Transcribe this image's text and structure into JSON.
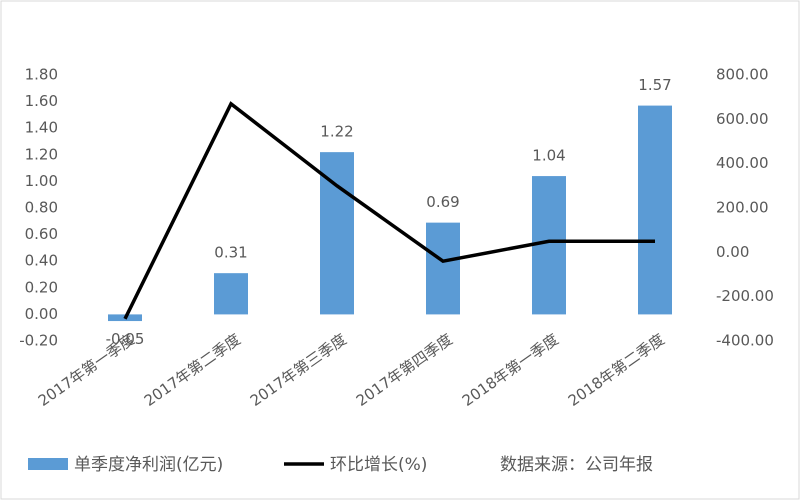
{
  "chart_data": {
    "type": "bar-line",
    "categories": [
      "2017年第一季度",
      "2017年第二季度",
      "2017年第三季度",
      "2017年第四季度",
      "2018年第一季度",
      "2018年第二季度"
    ],
    "series": [
      {
        "name": "单季度净利润(亿元)",
        "type": "bar",
        "color": "#5b9bd5",
        "values": [
          -0.05,
          0.31,
          1.22,
          0.69,
          1.04,
          1.57
        ]
      },
      {
        "name": "环比增长(%)",
        "type": "line",
        "axis": "y2",
        "color": "#000000",
        "values": [
          -300,
          670,
          300,
          -40,
          50,
          50
        ]
      }
    ],
    "ylim": [
      -0.2,
      1.8
    ],
    "yticks": [
      {
        "value": -0.2,
        "label": "-0.20"
      },
      {
        "value": 0,
        "label": "0.00"
      },
      {
        "value": 0.2,
        "label": "0.20"
      },
      {
        "value": 0.4,
        "label": "0.40"
      },
      {
        "value": 0.6,
        "label": "0.60"
      },
      {
        "value": 0.8,
        "label": "0.80"
      },
      {
        "value": 1.0,
        "label": "1.00"
      },
      {
        "value": 1.2,
        "label": "1.20"
      },
      {
        "value": 1.4,
        "label": "1.40"
      },
      {
        "value": 1.6,
        "label": "1.60"
      },
      {
        "value": 1.8,
        "label": "1.80"
      }
    ],
    "y2lim": [
      -400,
      800
    ],
    "y2ticks": [
      {
        "value": -400,
        "label": "-400.00"
      },
      {
        "value": -200,
        "label": "-200.00"
      },
      {
        "value": 0,
        "label": "0.00"
      },
      {
        "value": 200,
        "label": "200.00"
      },
      {
        "value": 400,
        "label": "400.00"
      },
      {
        "value": 600,
        "label": "600.00"
      },
      {
        "value": 800,
        "label": "800.00"
      }
    ],
    "grid": false,
    "legend": "bottom",
    "source": "数据来源：公司年报"
  }
}
